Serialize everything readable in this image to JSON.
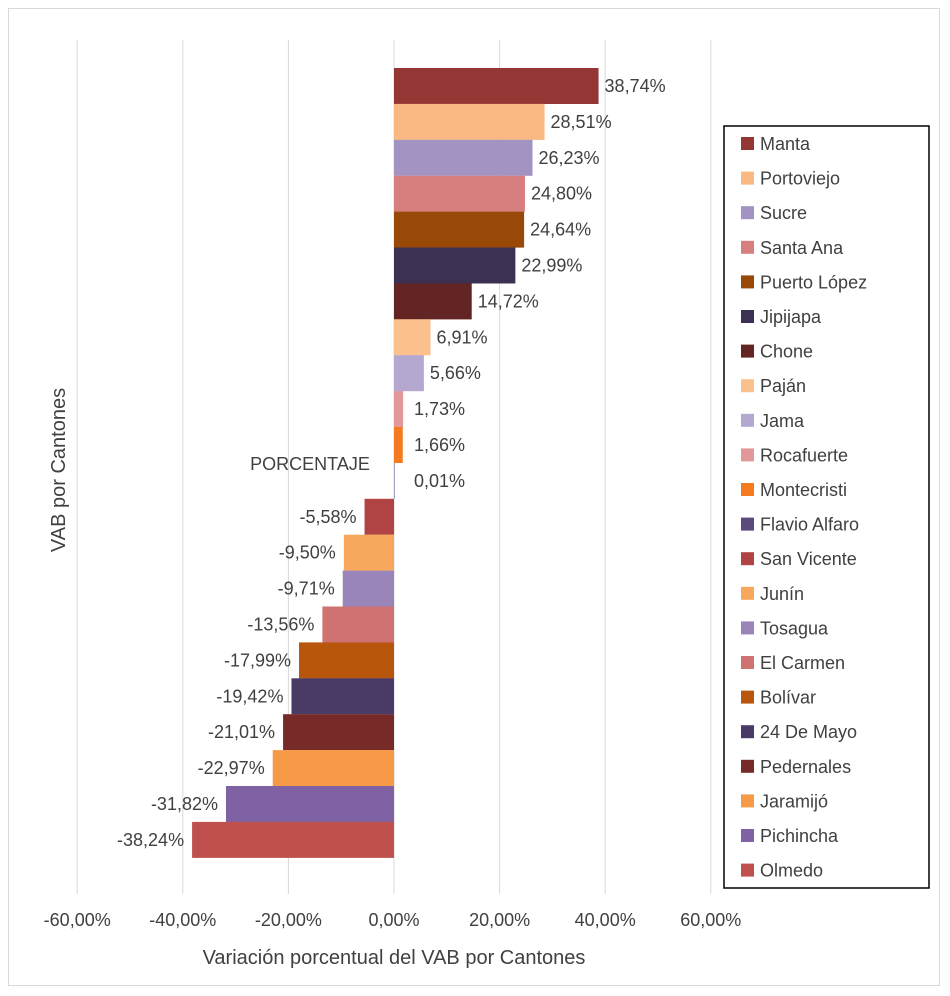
{
  "chart_data": {
    "type": "bar",
    "orientation": "horizontal",
    "series_label": "PORCENTAJE",
    "xlabel": "Variación porcentual del VAB  por Cantones",
    "ylabel": "VAB por Cantones",
    "xlim": [
      -60,
      60
    ],
    "xticks": [
      -60,
      -40,
      -20,
      0,
      20,
      40,
      60
    ],
    "xtick_labels": [
      "-60,00%",
      "-40,00%",
      "-20,00%",
      "0,00%",
      "20,00%",
      "40,00%",
      "60,00%"
    ],
    "grid": "vertical",
    "legend_position": "right",
    "categories": [
      "Manta",
      "Portoviejo",
      "Sucre",
      "Santa Ana",
      "Puerto López",
      "Jipijapa",
      "Chone",
      "Paján",
      "Jama",
      "Rocafuerte",
      "Montecristi",
      "Flavio Alfaro",
      "San Vicente",
      "Junín",
      "Tosagua",
      "El Carmen",
      "Bolívar",
      "24 De Mayo",
      "Pedernales",
      "Jaramijó",
      "Pichincha",
      "Olmedo"
    ],
    "values": [
      38.74,
      28.51,
      26.23,
      24.8,
      24.64,
      22.99,
      14.72,
      6.91,
      5.66,
      1.73,
      1.66,
      0.01,
      -5.58,
      -9.5,
      -9.71,
      -13.56,
      -17.99,
      -19.42,
      -21.01,
      -22.97,
      -31.82,
      -38.24
    ],
    "data_labels": [
      "38,74%",
      "28,51%",
      "26,23%",
      "24,80%",
      "24,64%",
      "22,99%",
      "14,72%",
      "6,91%",
      "5,66%",
      "1,73%",
      "1,66%",
      "0,01%",
      "-5,58%",
      "-9,50%",
      "-9,71%",
      "-13,56%",
      "-17,99%",
      "-19,42%",
      "-21,01%",
      "-22,97%",
      "-31,82%",
      "-38,24%"
    ],
    "colors": [
      "#943634",
      "#fab882",
      "#a393c3",
      "#d77e7e",
      "#984807",
      "#3d3153",
      "#632523",
      "#fbc08c",
      "#b4a7d0",
      "#e09898",
      "#f47a1f",
      "#5a4a7d",
      "#b04343",
      "#f8a85c",
      "#9985ba",
      "#d07272",
      "#b9560d",
      "#4a3b66",
      "#772b29",
      "#f79a48",
      "#7e62a3",
      "#c0504d"
    ]
  }
}
